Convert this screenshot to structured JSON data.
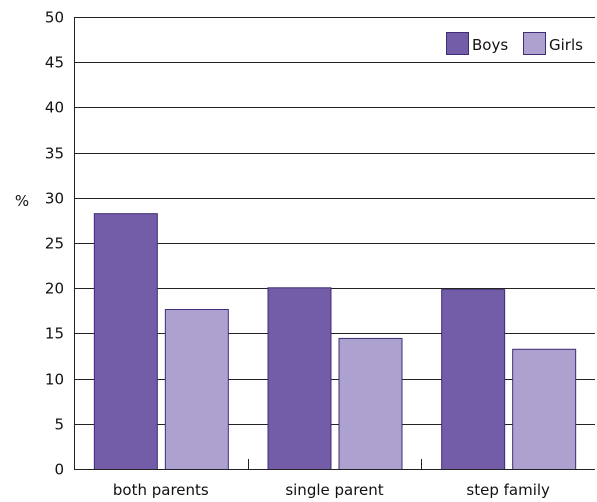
{
  "chart_data": {
    "type": "bar",
    "title": "",
    "xlabel": "",
    "ylabel": "%",
    "ylim": [
      0,
      50
    ],
    "yticks": [
      0,
      5,
      10,
      15,
      20,
      25,
      30,
      35,
      40,
      45,
      50
    ],
    "categories": [
      "both parents",
      "single parent",
      "step family"
    ],
    "series": [
      {
        "name": "Boys",
        "values": [
          28.3,
          20.1,
          19.9
        ],
        "color": "#735ca8"
      },
      {
        "name": "Girls",
        "values": [
          17.7,
          14.5,
          13.3
        ],
        "color": "#ada1cf"
      }
    ],
    "grid": true,
    "legend": "top-right",
    "bar_edge_color": "#3f2d75"
  }
}
